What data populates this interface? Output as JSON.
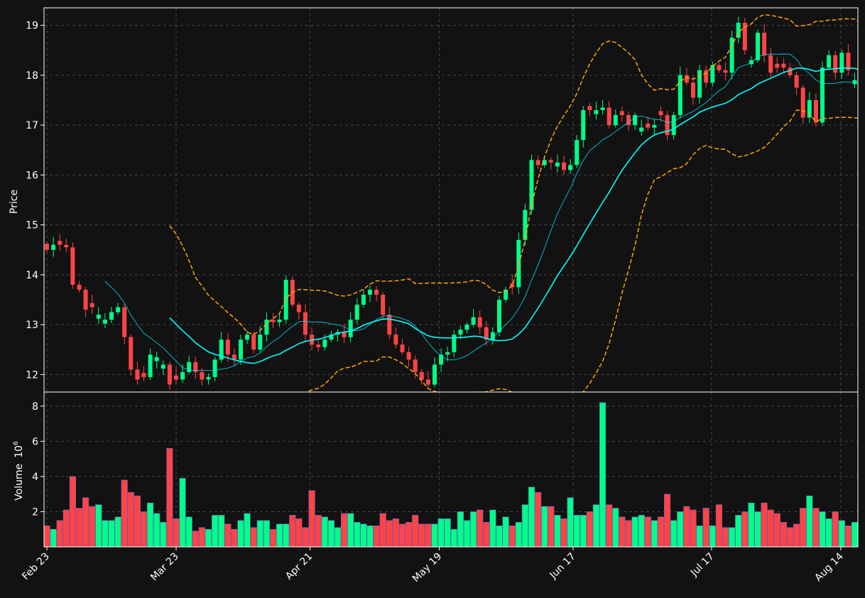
{
  "chart_data": {
    "type": "candlestick",
    "style": {
      "background": "#121212",
      "grid": true,
      "up_color": "#00ff88",
      "down_color": "#ff4444",
      "ma_fast_color": "#00e5ff",
      "ma_slow_color": "#00ffff",
      "band_color": "#ffa500"
    },
    "x_labels": [
      {
        "date": "2023-02-23",
        "label": "Feb 23"
      },
      {
        "date": "2023-03-23",
        "label": "Mar 23"
      },
      {
        "date": "2023-04-21",
        "label": "Apr 21"
      },
      {
        "date": "2023-05-19",
        "label": "May 19"
      },
      {
        "date": "2023-06-17",
        "label": "Jun 17"
      },
      {
        "date": "2023-07-17",
        "label": "Jul 17"
      },
      {
        "date": "2023-08-14",
        "label": "Aug 14"
      }
    ],
    "x_start": "2023-02-23",
    "price_panel": {
      "ylabel": "Price",
      "ylim": [
        11.65,
        19.35
      ],
      "yticks": [
        12,
        13,
        14,
        15,
        16,
        17,
        18,
        19
      ]
    },
    "volume_panel": {
      "ylabel": "Volume",
      "ylabel_exponent": "6",
      "ylim": [
        0.0,
        8.8
      ],
      "yticks": [
        2,
        4,
        6,
        8
      ]
    },
    "closes": [
      14.5,
      14.6,
      14.6,
      14.55,
      13.8,
      13.7,
      13.3,
      13.35,
      13.2,
      13.1,
      13.25,
      13.35,
      12.75,
      12.1,
      11.9,
      11.95,
      12.4,
      12.35,
      12.2,
      11.8,
      11.9,
      12.05,
      12.25,
      12.05,
      11.9,
      11.95,
      12.3,
      12.7,
      12.4,
      12.3,
      12.7,
      12.8,
      12.5,
      12.8,
      13.1,
      13.05,
      13.1,
      13.9,
      13.4,
      13.25,
      12.8,
      12.6,
      12.55,
      12.7,
      12.8,
      12.85,
      12.75,
      13.1,
      13.4,
      13.6,
      13.7,
      13.6,
      13.2,
      12.8,
      12.6,
      12.45,
      12.3,
      12.05,
      11.9,
      11.8,
      12.2,
      12.4,
      12.45,
      12.8,
      12.9,
      13.0,
      13.15,
      12.95,
      12.7,
      12.85,
      13.5,
      13.7,
      13.75,
      14.7,
      15.3,
      16.3,
      16.2,
      16.3,
      16.25,
      16.25,
      16.1,
      16.2,
      16.7,
      17.3,
      17.3,
      17.3,
      17.35,
      17.0,
      17.2,
      17.2,
      17.0,
      17.2,
      16.95,
      16.95,
      17.0,
      17.2,
      16.8,
      17.2,
      18.0,
      17.85,
      17.55,
      18.1,
      17.85,
      18.2,
      18.1,
      18.05,
      18.75,
      19.05,
      18.5,
      18.3,
      18.85,
      18.4,
      18.05,
      18.15,
      18.15,
      18.0,
      17.75,
      17.15,
      17.5,
      17.05,
      18.15,
      18.4,
      18.05,
      18.45,
      18.1,
      17.9,
      17.95
    ],
    "up": [
      false,
      true,
      false,
      false,
      false,
      false,
      false,
      false,
      true,
      true,
      true,
      true,
      false,
      false,
      false,
      false,
      true,
      true,
      true,
      false,
      false,
      true,
      true,
      false,
      false,
      true,
      true,
      true,
      false,
      false,
      true,
      true,
      false,
      true,
      true,
      false,
      true,
      true,
      false,
      false,
      false,
      false,
      false,
      true,
      true,
      true,
      false,
      true,
      true,
      true,
      true,
      false,
      false,
      false,
      false,
      false,
      false,
      false,
      false,
      false,
      true,
      true,
      true,
      true,
      true,
      true,
      true,
      false,
      false,
      true,
      true,
      true,
      false,
      true,
      true,
      true,
      false,
      true,
      false,
      true,
      false,
      true,
      true,
      true,
      false,
      true,
      true,
      false,
      true,
      false,
      false,
      true,
      true,
      false,
      true,
      false,
      false,
      true,
      true,
      false,
      false,
      true,
      false,
      true,
      false,
      false,
      true,
      true,
      false,
      true,
      true,
      false,
      false,
      false,
      false,
      false,
      false,
      false,
      true,
      false,
      true,
      true,
      false,
      true,
      false,
      true,
      false
    ],
    "volume": [
      1.2,
      1.0,
      1.5,
      2.1,
      4.0,
      2.2,
      2.8,
      2.3,
      2.4,
      1.5,
      1.5,
      1.7,
      3.8,
      3.1,
      2.9,
      2.0,
      2.5,
      1.9,
      1.4,
      5.6,
      1.6,
      3.9,
      1.7,
      0.9,
      1.1,
      1.0,
      1.8,
      1.8,
      1.3,
      1.0,
      1.5,
      1.9,
      1.1,
      1.5,
      1.5,
      1.0,
      1.3,
      1.3,
      1.8,
      1.6,
      1.1,
      3.2,
      1.8,
      1.7,
      1.5,
      1.1,
      1.9,
      1.9,
      1.4,
      1.3,
      1.2,
      1.2,
      1.9,
      1.5,
      1.6,
      1.3,
      1.4,
      1.8,
      1.3,
      1.3,
      1.3,
      1.6,
      1.6,
      1.0,
      2.0,
      1.5,
      2.0,
      2.1,
      1.4,
      2.1,
      1.2,
      1.7,
      1.2,
      1.4,
      2.4,
      3.4,
      3.1,
      2.3,
      2.3,
      1.8,
      1.6,
      2.8,
      1.8,
      1.8,
      2.0,
      2.4,
      8.2,
      2.4,
      2.2,
      1.7,
      1.5,
      1.7,
      1.8,
      1.7,
      1.5,
      1.7,
      3.0,
      1.5,
      2.0,
      2.3,
      2.1,
      1.2,
      2.2,
      1.2,
      2.4,
      1.1,
      1.1,
      1.8,
      2.0,
      2.5,
      2.0,
      2.5,
      2.1,
      1.9,
      1.4,
      1.1,
      1.3,
      2.2,
      2.9,
      2.2,
      2.0,
      1.6,
      2.0,
      1.5,
      1.2,
      1.4
    ],
    "moving_averages": [
      {
        "window": 10,
        "color": "#00e5ff"
      },
      {
        "window": 20,
        "color": "#00ffff"
      }
    ],
    "bands": {
      "window": 20,
      "k": 2,
      "color": "#ffa500"
    }
  }
}
